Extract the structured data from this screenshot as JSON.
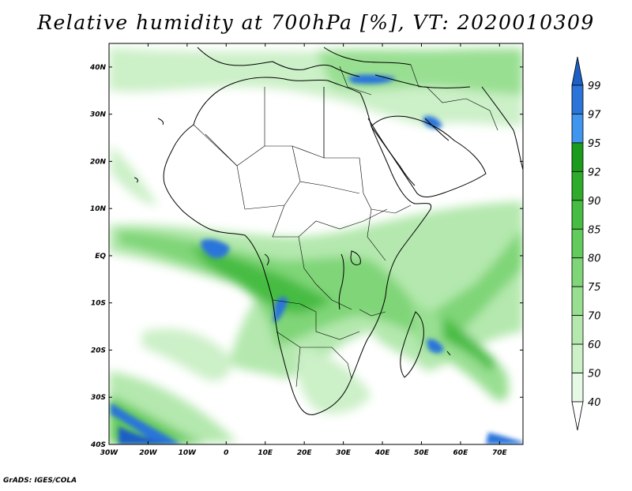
{
  "title": "Relative humidity at 700hPa [%], VT: 2020010309",
  "credit": "GrADS: IGES/COLA",
  "map": {
    "lon_range": [
      -30,
      76
    ],
    "lat_range": [
      -40,
      45
    ],
    "lon_ticks": [
      "30W",
      "20W",
      "10W",
      "0",
      "10E",
      "20E",
      "30E",
      "40E",
      "50E",
      "60E",
      "70E"
    ],
    "lat_ticks": [
      "40N",
      "30N",
      "20N",
      "10N",
      "EQ",
      "10S",
      "20S",
      "30S",
      "40S"
    ]
  },
  "colorbar": {
    "levels": [
      "40",
      "50",
      "60",
      "70",
      "75",
      "80",
      "85",
      "90",
      "92",
      "95",
      "97",
      "99"
    ],
    "colors": [
      "#ffffff",
      "#e6f9e4",
      "#ccf0c8",
      "#b4e8ae",
      "#99df92",
      "#7fd577",
      "#63ca5c",
      "#46bc42",
      "#2fab2c",
      "#1c9a1b",
      "#4096ee",
      "#2a74da",
      "#1d5fc4"
    ]
  }
}
